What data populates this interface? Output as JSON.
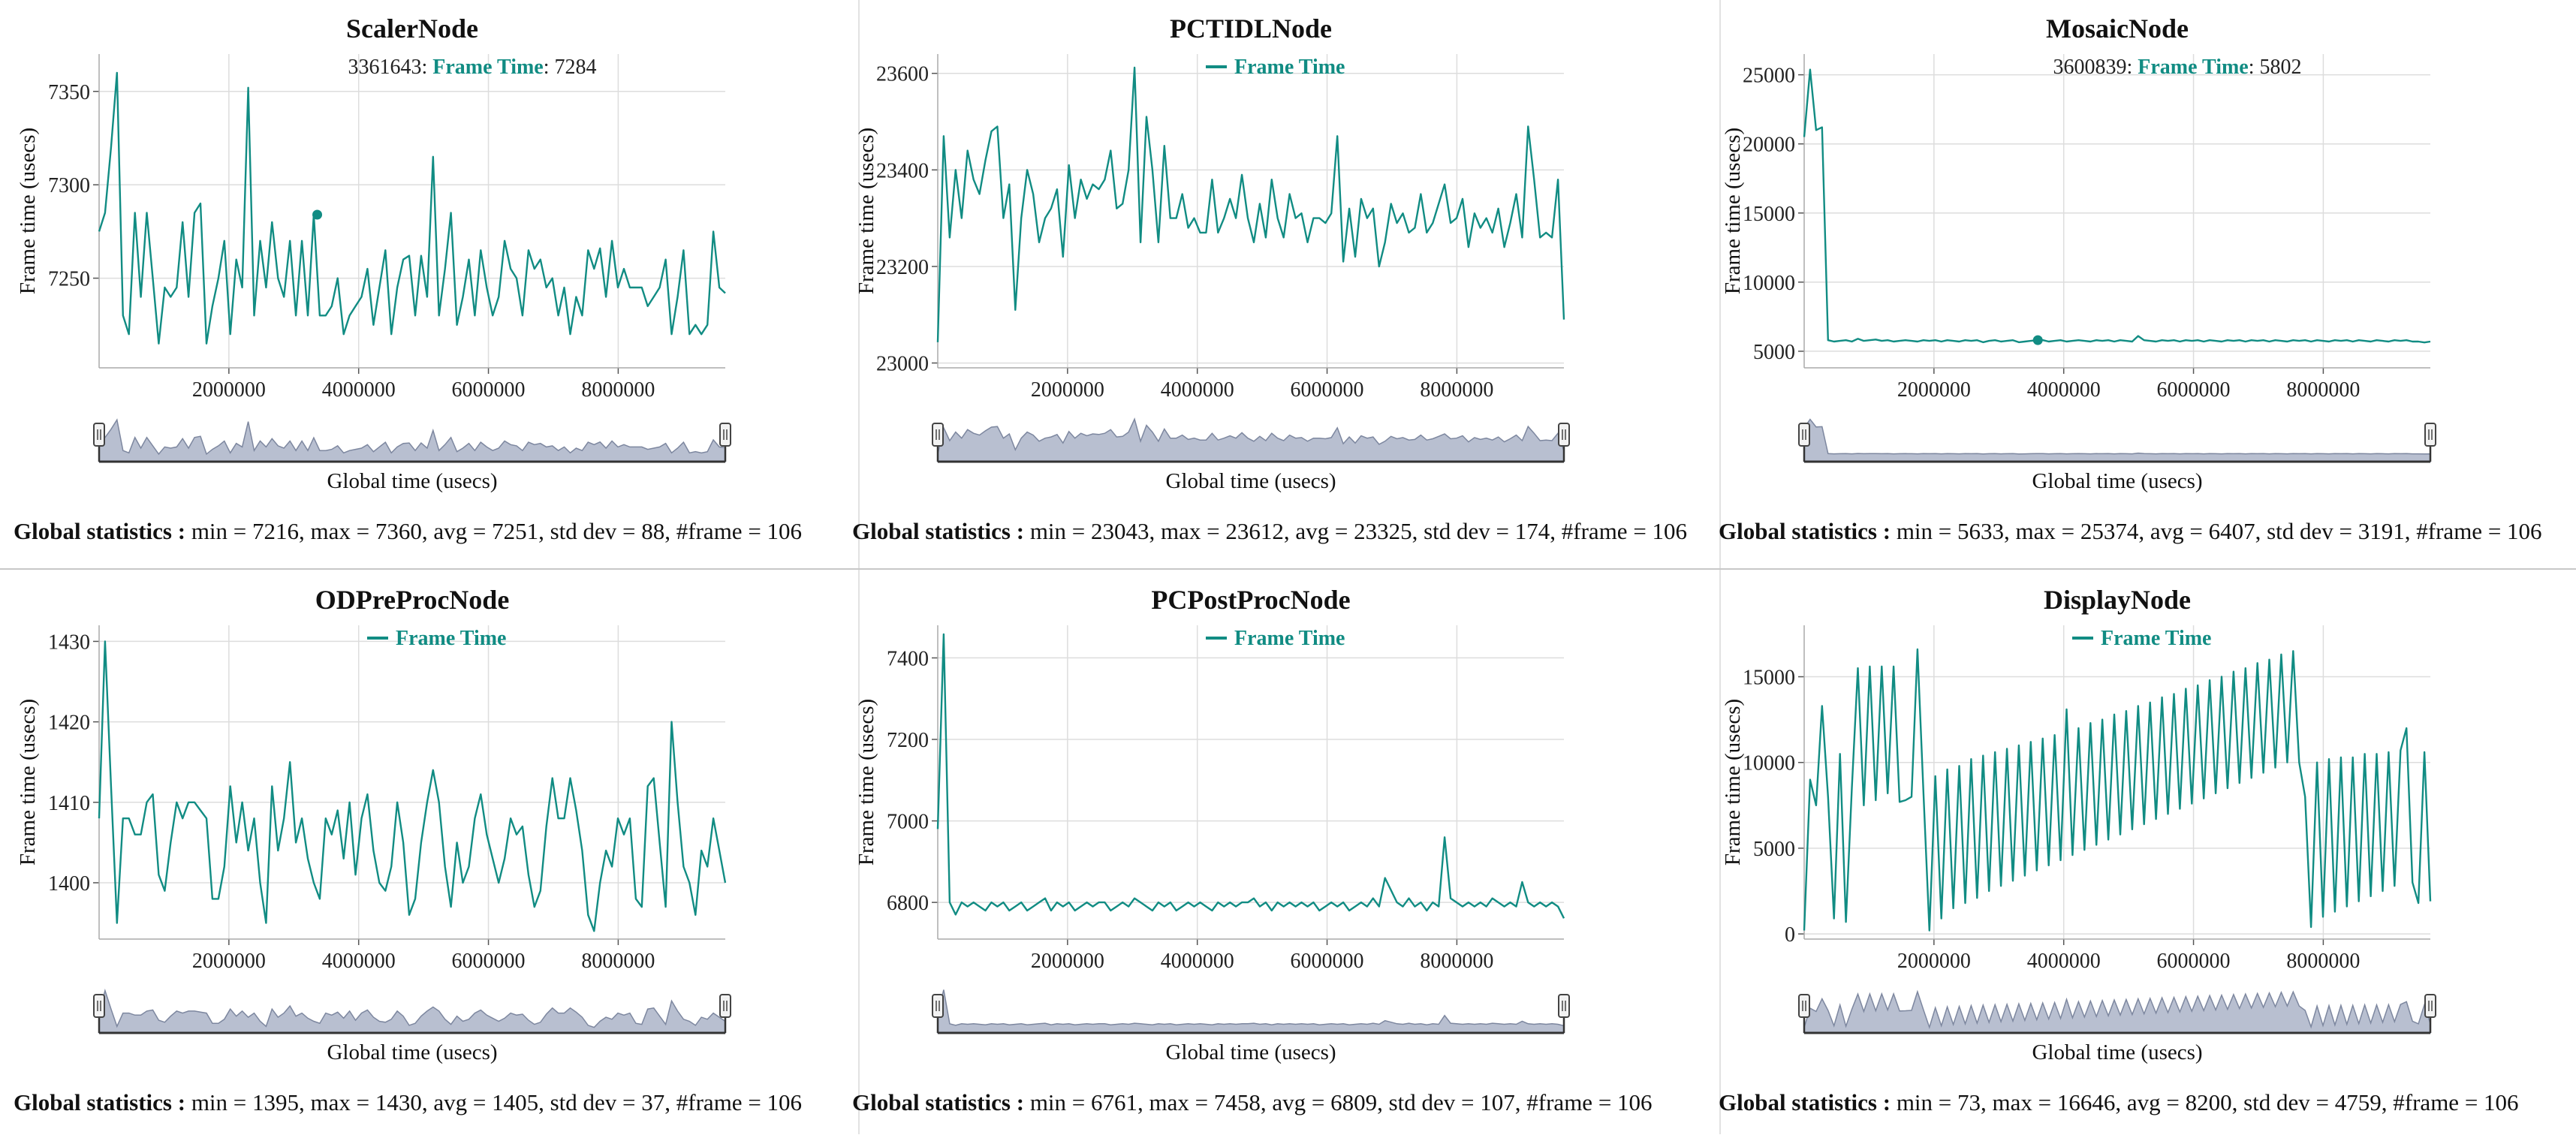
{
  "colors": {
    "line": "#118c83",
    "nav_fill": "#b8bfd0",
    "nav_stroke": "#7d879f",
    "grid": "#dddddd"
  },
  "stats_label": "Global statistics :",
  "chart_data": [
    {
      "type": "line",
      "title": "ScalerNode",
      "xlabel": "Global time (usecs)",
      "ylabel": "Frame time (usecs)",
      "legend": "",
      "series_name": "Frame Time",
      "xlim": [
        0,
        9650000
      ],
      "ylim": [
        7202,
        7370
      ],
      "xticks": [
        2000000,
        4000000,
        6000000,
        8000000
      ],
      "yticks": [
        7250,
        7300,
        7350
      ],
      "tooltip": {
        "x": 3361643,
        "label": "Frame Time",
        "value": 7284,
        "prefix": "3361643:",
        "suffix": ": 7284"
      },
      "y": [
        7275,
        7285,
        7320,
        7360,
        7230,
        7220,
        7285,
        7240,
        7285,
        7250,
        7215,
        7245,
        7240,
        7245,
        7280,
        7240,
        7285,
        7290,
        7215,
        7235,
        7250,
        7270,
        7220,
        7260,
        7245,
        7352,
        7230,
        7270,
        7245,
        7280,
        7250,
        7240,
        7270,
        7230,
        7270,
        7230,
        7284,
        7230,
        7230,
        7235,
        7250,
        7220,
        7230,
        7235,
        7240,
        7255,
        7225,
        7245,
        7265,
        7220,
        7245,
        7260,
        7262,
        7230,
        7262,
        7240,
        7315,
        7230,
        7255,
        7285,
        7225,
        7240,
        7260,
        7230,
        7265,
        7245,
        7230,
        7240,
        7270,
        7255,
        7250,
        7230,
        7265,
        7255,
        7260,
        7245,
        7250,
        7230,
        7245,
        7220,
        7240,
        7230,
        7265,
        7255,
        7266,
        7240,
        7270,
        7245,
        7255,
        7245,
        7245,
        7245,
        7235,
        7240,
        7245,
        7260,
        7220,
        7240,
        7265,
        7220,
        7225,
        7220,
        7225,
        7275,
        7245,
        7242
      ],
      "stats": "min = 7216, max = 7360, avg = 7251, std dev = 88, #frame = 106"
    },
    {
      "type": "line",
      "title": "PCTIDLNode",
      "xlabel": "Global time (usecs)",
      "ylabel": "Frame time (usecs)",
      "legend": "Frame Time",
      "series_name": "Frame Time",
      "xlim": [
        0,
        9650000
      ],
      "ylim": [
        22990,
        23640
      ],
      "xticks": [
        2000000,
        4000000,
        6000000,
        8000000
      ],
      "yticks": [
        23000,
        23200,
        23400,
        23600
      ],
      "tooltip": null,
      "y": [
        23043,
        23470,
        23260,
        23400,
        23300,
        23440,
        23380,
        23350,
        23420,
        23480,
        23490,
        23300,
        23370,
        23110,
        23300,
        23400,
        23350,
        23250,
        23300,
        23320,
        23360,
        23220,
        23410,
        23300,
        23380,
        23340,
        23370,
        23360,
        23380,
        23440,
        23320,
        23330,
        23400,
        23612,
        23250,
        23510,
        23400,
        23250,
        23450,
        23300,
        23300,
        23350,
        23280,
        23300,
        23270,
        23270,
        23380,
        23270,
        23300,
        23340,
        23300,
        23390,
        23300,
        23250,
        23330,
        23260,
        23380,
        23300,
        23260,
        23350,
        23300,
        23310,
        23250,
        23300,
        23300,
        23290,
        23310,
        23470,
        23210,
        23320,
        23220,
        23340,
        23300,
        23320,
        23200,
        23250,
        23330,
        23290,
        23310,
        23270,
        23280,
        23350,
        23270,
        23290,
        23330,
        23370,
        23290,
        23300,
        23340,
        23240,
        23310,
        23280,
        23300,
        23270,
        23320,
        23240,
        23290,
        23350,
        23260,
        23490,
        23380,
        23260,
        23270,
        23260,
        23380,
        23090
      ],
      "stats": "min = 23043, max = 23612, avg = 23325, std dev = 174, #frame = 106"
    },
    {
      "type": "line",
      "title": "MosaicNode",
      "xlabel": "Global time (usecs)",
      "ylabel": "Frame time (usecs)",
      "legend": "",
      "series_name": "Frame Time",
      "xlim": [
        0,
        9650000
      ],
      "ylim": [
        3800,
        26500
      ],
      "xticks": [
        2000000,
        4000000,
        6000000,
        8000000
      ],
      "yticks": [
        5000,
        10000,
        15000,
        20000,
        25000
      ],
      "tooltip": {
        "x": 3600839,
        "label": "Frame Time",
        "value": 5802,
        "prefix": "3600839:",
        "suffix": ": 5802"
      },
      "y": [
        20500,
        25374,
        21000,
        21200,
        5800,
        5700,
        5750,
        5800,
        5700,
        5900,
        5750,
        5800,
        5850,
        5750,
        5800,
        5700,
        5750,
        5800,
        5750,
        5700,
        5800,
        5750,
        5800,
        5700,
        5800,
        5750,
        5700,
        5800,
        5750,
        5800,
        5650,
        5750,
        5800,
        5700,
        5750,
        5800,
        5650,
        5700,
        5750,
        5800,
        5802,
        5700,
        5750,
        5800,
        5700,
        5750,
        5800,
        5750,
        5700,
        5800,
        5750,
        5800,
        5700,
        5800,
        5750,
        5700,
        6100,
        5800,
        5750,
        5700,
        5800,
        5750,
        5800,
        5700,
        5800,
        5750,
        5800,
        5700,
        5800,
        5750,
        5700,
        5800,
        5750,
        5800,
        5700,
        5800,
        5750,
        5800,
        5700,
        5800,
        5750,
        5700,
        5800,
        5750,
        5800,
        5700,
        5800,
        5750,
        5700,
        5800,
        5750,
        5800,
        5700,
        5800,
        5750,
        5700,
        5800,
        5750,
        5700,
        5800,
        5750,
        5800,
        5700,
        5700,
        5633,
        5700
      ],
      "stats": "min = 5633, max = 25374, avg = 6407, std dev = 3191, #frame = 106"
    },
    {
      "type": "line",
      "title": "ODPreProcNode",
      "xlabel": "Global time (usecs)",
      "ylabel": "Frame time (usecs)",
      "legend": "Frame Time",
      "series_name": "Frame Time",
      "xlim": [
        0,
        9650000
      ],
      "ylim": [
        1393,
        1432
      ],
      "xticks": [
        2000000,
        4000000,
        6000000,
        8000000
      ],
      "yticks": [
        1400,
        1410,
        1420,
        1430
      ],
      "tooltip": null,
      "y": [
        1408,
        1430,
        1412,
        1395,
        1408,
        1408,
        1406,
        1406,
        1410,
        1411,
        1401,
        1399,
        1405,
        1410,
        1408,
        1410,
        1410,
        1409,
        1408,
        1398,
        1398,
        1402,
        1412,
        1405,
        1410,
        1404,
        1408,
        1400,
        1395,
        1412,
        1404,
        1408,
        1415,
        1405,
        1408,
        1403,
        1400,
        1398,
        1408,
        1406,
        1409,
        1403,
        1410,
        1401,
        1408,
        1411,
        1404,
        1400,
        1399,
        1402,
        1410,
        1405,
        1396,
        1398,
        1405,
        1410,
        1414,
        1410,
        1402,
        1397,
        1405,
        1400,
        1402,
        1408,
        1411,
        1406,
        1403,
        1400,
        1403,
        1408,
        1406,
        1407,
        1401,
        1397,
        1399,
        1407,
        1413,
        1408,
        1408,
        1413,
        1409,
        1404,
        1396,
        1394,
        1400,
        1404,
        1402,
        1408,
        1406,
        1408,
        1398,
        1397,
        1412,
        1413,
        1405,
        1397,
        1420,
        1410,
        1402,
        1400,
        1396,
        1404,
        1402,
        1408,
        1404,
        1400
      ],
      "stats": "min = 1395, max = 1430, avg = 1405, std dev = 37, #frame = 106"
    },
    {
      "type": "line",
      "title": "PCPostProcNode",
      "xlabel": "Global time (usecs)",
      "ylabel": "Frame time (usecs)",
      "legend": "Frame Time",
      "series_name": "Frame Time",
      "xlim": [
        0,
        9650000
      ],
      "ylim": [
        6710,
        7480
      ],
      "xticks": [
        2000000,
        4000000,
        6000000,
        8000000
      ],
      "yticks": [
        6800,
        7000,
        7200,
        7400
      ],
      "tooltip": null,
      "y": [
        6980,
        7458,
        6800,
        6770,
        6800,
        6790,
        6800,
        6790,
        6780,
        6800,
        6790,
        6800,
        6780,
        6790,
        6800,
        6780,
        6790,
        6800,
        6810,
        6780,
        6800,
        6790,
        6800,
        6780,
        6790,
        6800,
        6790,
        6800,
        6800,
        6780,
        6790,
        6800,
        6790,
        6810,
        6800,
        6790,
        6780,
        6800,
        6790,
        6800,
        6780,
        6790,
        6800,
        6790,
        6800,
        6790,
        6780,
        6800,
        6790,
        6800,
        6790,
        6800,
        6800,
        6810,
        6790,
        6800,
        6780,
        6800,
        6790,
        6800,
        6790,
        6800,
        6790,
        6800,
        6780,
        6790,
        6800,
        6790,
        6800,
        6780,
        6790,
        6800,
        6790,
        6810,
        6790,
        6860,
        6830,
        6800,
        6790,
        6810,
        6790,
        6800,
        6780,
        6800,
        6790,
        6960,
        6810,
        6800,
        6790,
        6800,
        6790,
        6800,
        6790,
        6810,
        6800,
        6790,
        6800,
        6790,
        6850,
        6800,
        6790,
        6800,
        6790,
        6800,
        6790,
        6761
      ],
      "stats": "min = 6761, max = 7458, avg = 6809, std dev = 107, #frame = 106"
    },
    {
      "type": "line",
      "title": "DisplayNode",
      "xlabel": "Global time (usecs)",
      "ylabel": "Frame time (usecs)",
      "legend": "Frame Time",
      "series_name": "Frame Time",
      "xlim": [
        0,
        9650000
      ],
      "ylim": [
        -300,
        18000
      ],
      "xticks": [
        2000000,
        4000000,
        6000000,
        8000000
      ],
      "yticks": [
        0,
        5000,
        10000,
        15000
      ],
      "tooltip": null,
      "y": [
        200,
        9000,
        7500,
        13300,
        8000,
        900,
        10500,
        700,
        8500,
        15500,
        7500,
        15600,
        7800,
        15600,
        8200,
        15600,
        7700,
        7800,
        8000,
        16600,
        8200,
        200,
        9200,
        900,
        9600,
        1500,
        9800,
        1800,
        10200,
        2100,
        10400,
        2500,
        10600,
        2800,
        10800,
        3100,
        11000,
        3400,
        11200,
        3700,
        11400,
        4000,
        11600,
        4300,
        13100,
        4600,
        12000,
        4900,
        12300,
        5200,
        12500,
        5500,
        12800,
        5800,
        13000,
        6100,
        13300,
        6400,
        13500,
        6700,
        13800,
        7000,
        14000,
        7300,
        14300,
        7600,
        14500,
        7900,
        14800,
        8200,
        15000,
        8500,
        15300,
        8800,
        15500,
        9100,
        15800,
        9400,
        16000,
        9700,
        16300,
        10000,
        16500,
        10000,
        8000,
        400,
        10000,
        1000,
        10200,
        1300,
        10300,
        1600,
        10300,
        1900,
        10500,
        2200,
        10500,
        2500,
        10600,
        2800,
        10700,
        12000,
        3000,
        1800,
        10600,
        1900
      ],
      "stats": "min = 73, max = 16646, avg = 8200, std dev = 4759, #frame = 106"
    }
  ]
}
